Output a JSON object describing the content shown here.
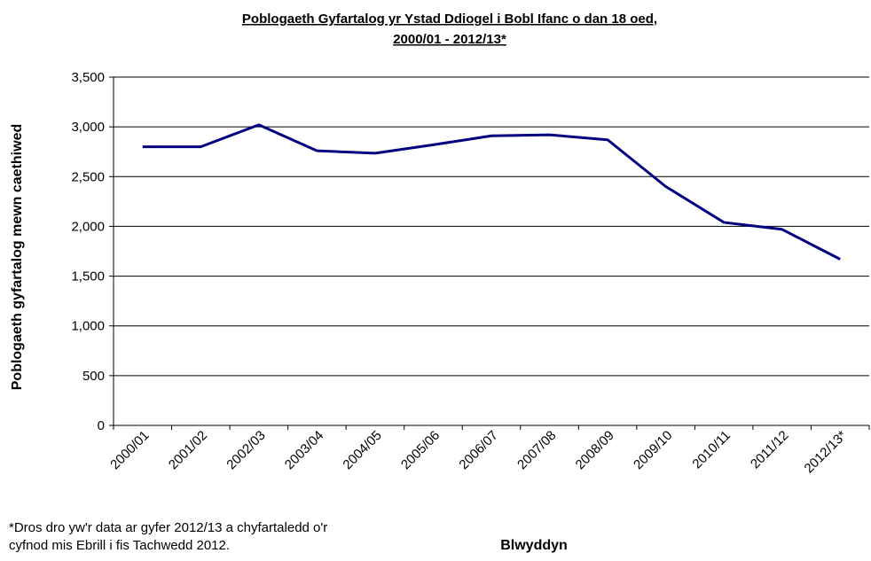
{
  "chart_data": {
    "type": "line",
    "title": [
      "Poblogaeth Gyfartalog yr Ystad Ddiogel i Bobl Ifanc o dan 18 oed,",
      "2000/01 - 2012/13*"
    ],
    "x_label": "Blwyddyn",
    "y_label": "Poblogaeth gyfartalog mewn caethiwed",
    "note": [
      "*Dros dro yw'r data ar gyfer 2012/13 a chyfartaledd o'r",
      "cyfnod mis Ebrill i fis Tachwedd 2012."
    ],
    "categories": [
      "2000/01",
      "2001/02",
      "2002/03",
      "2003/04",
      "2004/05",
      "2005/06",
      "2006/07",
      "2007/08",
      "2008/09",
      "2009/10",
      "2010/11",
      "2011/12",
      "2012/13*"
    ],
    "series": [
      {
        "name": "Poblogaeth",
        "color": "#000080",
        "values": [
          2800,
          2800,
          3020,
          2760,
          2735,
          2820,
          2910,
          2920,
          2870,
          2400,
          2040,
          1970,
          1670
        ]
      }
    ],
    "ylim": [
      0,
      3500
    ],
    "yticks": [
      0,
      {
        "value": 500,
        "label": "500"
      },
      {
        "value": 1000,
        "label": "1,000"
      },
      {
        "value": 1500,
        "label": "1,500"
      },
      {
        "value": 2000,
        "label": "2,000"
      },
      {
        "value": 2500,
        "label": "2,500"
      },
      {
        "value": 3000,
        "label": "3,000"
      },
      {
        "value": 3500,
        "label": "3,500"
      }
    ],
    "grid": true
  }
}
